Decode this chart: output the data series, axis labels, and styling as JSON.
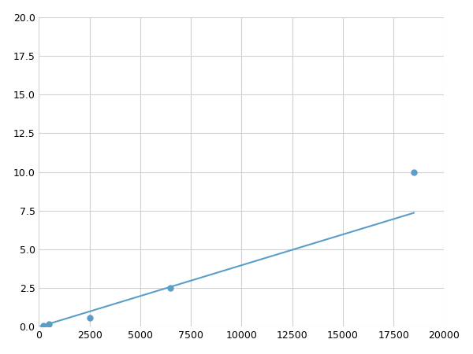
{
  "x": [
    200,
    500,
    2500,
    6500,
    18500
  ],
  "y": [
    0.1,
    0.2,
    0.6,
    2.5,
    10.0
  ],
  "line_color": "#5b9dc9",
  "marker_color": "#5b9dc9",
  "marker_size": 5,
  "xlim": [
    0,
    20000
  ],
  "ylim": [
    0,
    20.0
  ],
  "xticks": [
    0,
    2500,
    5000,
    7500,
    10000,
    12500,
    15000,
    17500,
    20000
  ],
  "yticks": [
    0.0,
    2.5,
    5.0,
    7.5,
    10.0,
    12.5,
    15.0,
    17.5,
    20.0
  ],
  "grid_color": "#d0d0d0",
  "background_color": "#ffffff",
  "figure_background": "#ffffff",
  "line_width": 1.5
}
